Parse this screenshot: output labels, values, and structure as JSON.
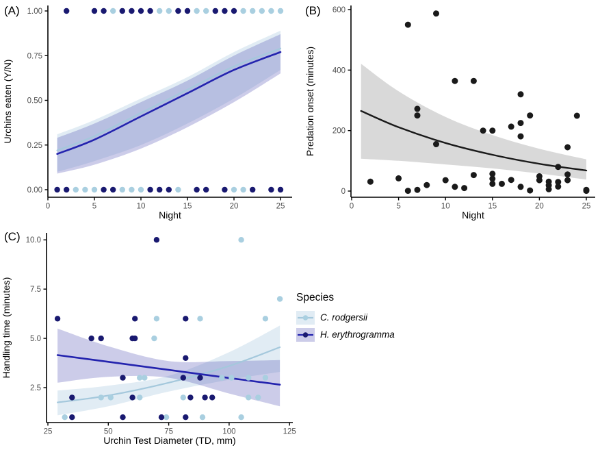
{
  "figure": {
    "panels": [
      {
        "label": "(A)"
      },
      {
        "label": "(B)"
      },
      {
        "label": "(C)"
      }
    ]
  },
  "colors": {
    "c_rodgersii_point": "#a9cfe0",
    "c_rodgersii_line": "#a4c8dc",
    "h_erythrogramma_point": "#191970",
    "h_erythrogramma_line": "#2323ae",
    "ribbon_light": "#aac8e0",
    "ribbon_navy": "#5757b5",
    "ribbon_gray": "#d9d9d9",
    "points_black": "#1a1a1a",
    "tick_text": "#4d4d4d",
    "axis": "#000000",
    "background": "#ffffff"
  },
  "legend": {
    "title": "Species",
    "items": [
      {
        "label": "C. rodgersii",
        "species_key": "c_rodgersii"
      },
      {
        "label": "H. erythrogramma",
        "species_key": "h_erythrogramma"
      }
    ]
  },
  "chart_data": [
    {
      "panel": "(A)",
      "type": "scatter",
      "subtype": "binary outcome with logistic fits and confidence ribbons",
      "title": "",
      "xlabel": "Night",
      "ylabel": "Urchins eaten (Y/N)",
      "xlim": [
        0,
        25
      ],
      "ylim": [
        0,
        1
      ],
      "xticks": [
        0,
        5,
        10,
        15,
        20,
        25
      ],
      "ytick_values": [
        0,
        0.25,
        0.5,
        0.75,
        1
      ],
      "ytick_labels": [
        "0.00",
        "0.25",
        "0.50",
        "0.75",
        "1.00"
      ],
      "grid": false,
      "legend_position": "none",
      "series": [
        {
          "name": "C. rodgersii",
          "eaten_nights": [
            7,
            12,
            13,
            16,
            17,
            21,
            22,
            23,
            24,
            25
          ],
          "not_eaten_nights": [
            3,
            4,
            5,
            8,
            9,
            10,
            14,
            20,
            21
          ],
          "fit_x": [
            1,
            5,
            10,
            15,
            20,
            25
          ],
          "fit_y": [
            0.22,
            0.3,
            0.43,
            0.56,
            0.69,
            0.79
          ],
          "ribbon_upper": [
            0.31,
            0.39,
            0.51,
            0.63,
            0.77,
            0.89
          ],
          "ribbon_lower": [
            0.1,
            0.16,
            0.25,
            0.37,
            0.51,
            0.67
          ]
        },
        {
          "name": "H. erythrogramma",
          "eaten_nights": [
            2,
            5,
            6,
            8,
            9,
            10,
            11,
            14,
            15,
            18,
            19,
            20
          ],
          "not_eaten_nights": [
            1,
            2,
            6,
            7,
            11,
            12,
            13,
            16,
            17,
            19,
            22,
            24,
            25
          ],
          "fit_x": [
            1,
            5,
            10,
            15,
            20,
            25
          ],
          "fit_y": [
            0.2,
            0.28,
            0.41,
            0.54,
            0.67,
            0.77
          ],
          "ribbon_upper": [
            0.29,
            0.37,
            0.49,
            0.61,
            0.75,
            0.87
          ],
          "ribbon_lower": [
            0.09,
            0.14,
            0.23,
            0.35,
            0.49,
            0.65
          ]
        }
      ]
    },
    {
      "panel": "(B)",
      "type": "scatter",
      "subtype": "scatter with decaying fit and gray confidence ribbon",
      "title": "",
      "xlabel": "Night",
      "ylabel": "Predation onset (minutes)",
      "xlim": [
        0,
        25
      ],
      "ylim": [
        0,
        600
      ],
      "xticks": [
        0,
        5,
        10,
        15,
        20,
        25
      ],
      "yticks": [
        0,
        200,
        400,
        600
      ],
      "grid": false,
      "legend_position": "none",
      "points": [
        [
          2,
          31
        ],
        [
          5,
          42
        ],
        [
          6,
          550
        ],
        [
          6,
          1
        ],
        [
          7,
          272
        ],
        [
          7,
          250
        ],
        [
          7,
          4
        ],
        [
          8,
          20
        ],
        [
          9,
          587
        ],
        [
          9,
          155
        ],
        [
          10,
          36
        ],
        [
          11,
          364
        ],
        [
          11,
          14
        ],
        [
          12,
          10
        ],
        [
          13,
          364
        ],
        [
          13,
          53
        ],
        [
          14,
          200
        ],
        [
          15,
          200
        ],
        [
          15,
          57
        ],
        [
          15,
          41
        ],
        [
          15,
          24
        ],
        [
          16,
          24
        ],
        [
          17,
          213
        ],
        [
          17,
          37
        ],
        [
          18,
          320
        ],
        [
          18,
          225
        ],
        [
          18,
          181
        ],
        [
          18,
          14
        ],
        [
          19,
          250
        ],
        [
          19,
          2
        ],
        [
          20,
          49
        ],
        [
          20,
          36
        ],
        [
          21,
          31
        ],
        [
          21,
          19
        ],
        [
          21,
          6
        ],
        [
          22,
          80
        ],
        [
          22,
          30
        ],
        [
          22,
          15
        ],
        [
          23,
          145
        ],
        [
          23,
          55
        ],
        [
          23,
          36
        ],
        [
          24,
          249
        ],
        [
          25,
          4
        ],
        [
          25,
          1
        ]
      ],
      "fit_x": [
        1,
        5,
        10,
        15,
        20,
        25
      ],
      "fit_y": [
        265,
        211,
        159,
        120,
        90,
        68
      ],
      "ribbon_upper": [
        421,
        330,
        245,
        185,
        140,
        105
      ],
      "ribbon_lower": [
        107,
        100,
        88,
        75,
        58,
        38
      ]
    },
    {
      "panel": "(C)",
      "type": "scatter",
      "subtype": "two-species scatter with linear fits and confidence ribbons",
      "title": "",
      "xlabel": "Urchin Test Diameter (TD, mm)",
      "ylabel": "Handling time (minutes)",
      "xlim": [
        25,
        125
      ],
      "ylim": [
        1,
        10
      ],
      "xticks": [
        25,
        50,
        75,
        100,
        125
      ],
      "ytick_values": [
        2.5,
        5,
        7.5,
        10
      ],
      "ytick_labels": [
        "2.5",
        "5.0",
        "7.5",
        "10.0"
      ],
      "grid": false,
      "legend_position": "right",
      "series": [
        {
          "name": "C. rodgersii",
          "points": [
            [
              105,
              10
            ],
            [
              121,
              7
            ],
            [
              70,
              6
            ],
            [
              88,
              6
            ],
            [
              115,
              6
            ],
            [
              69,
              5
            ],
            [
              63,
              3
            ],
            [
              65,
              3
            ],
            [
              97,
              3
            ],
            [
              101,
              3
            ],
            [
              108,
              3
            ],
            [
              115,
              3
            ],
            [
              47,
              2
            ],
            [
              51,
              2
            ],
            [
              63,
              2
            ],
            [
              81,
              2
            ],
            [
              108,
              2
            ],
            [
              112,
              2
            ],
            [
              32,
              1
            ],
            [
              74,
              1
            ],
            [
              89,
              1
            ],
            [
              105,
              1
            ]
          ],
          "fit_x": [
            29,
            50,
            75,
            100,
            121
          ],
          "fit_y": [
            1.75,
            2.1,
            2.75,
            3.6,
            4.55
          ],
          "ribbon_upper": [
            2.35,
            2.6,
            3.1,
            4.3,
            5.65
          ],
          "ribbon_lower": [
            1.1,
            1.55,
            2.3,
            2.9,
            3.3
          ]
        },
        {
          "name": "H. erythrogramma",
          "points": [
            [
              29,
              6
            ],
            [
              70,
              10
            ],
            [
              43,
              5
            ],
            [
              47,
              5
            ],
            [
              60,
              5
            ],
            [
              61,
              5
            ],
            [
              61,
              6
            ],
            [
              82,
              6
            ],
            [
              82,
              4
            ],
            [
              56,
              3
            ],
            [
              81,
              3
            ],
            [
              88,
              3
            ],
            [
              35,
              2
            ],
            [
              60,
              2
            ],
            [
              84,
              2
            ],
            [
              90,
              2
            ],
            [
              93,
              2
            ],
            [
              35,
              1
            ],
            [
              56,
              1
            ],
            [
              72,
              1
            ],
            [
              82,
              1
            ]
          ],
          "fit_x": [
            29,
            50,
            75,
            100,
            121
          ],
          "fit_y": [
            4.15,
            3.81,
            3.4,
            2.99,
            2.65
          ],
          "ribbon_upper": [
            5.5,
            4.6,
            3.85,
            3.85,
            3.9
          ],
          "ribbon_lower": [
            2.75,
            3.05,
            3.0,
            2.2,
            1.55
          ]
        }
      ]
    }
  ]
}
